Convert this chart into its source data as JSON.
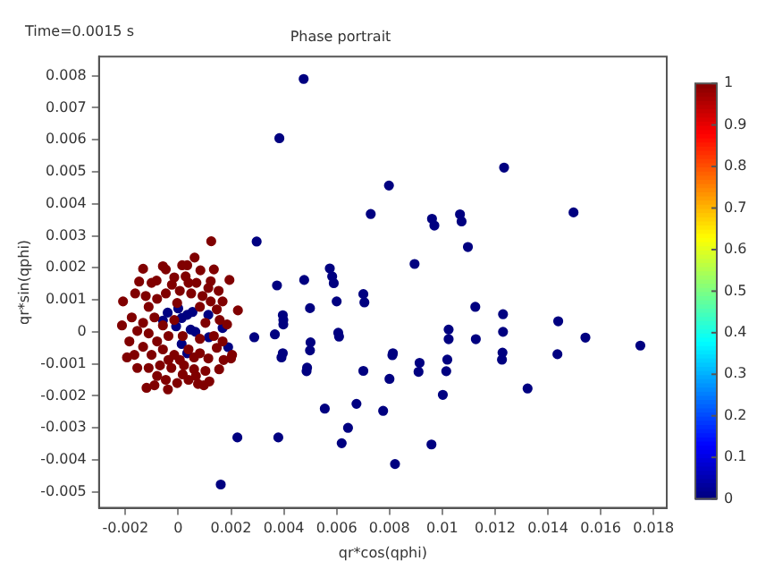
{
  "chart_data": {
    "type": "scatter",
    "title": "Phase portrait",
    "xlabel": "qr*cos(qphi)",
    "ylabel": "qr*sin(qphi)",
    "annotations": [
      "Time=0.0015 s"
    ],
    "xlim": [
      -0.003,
      0.0185
    ],
    "xticks": [
      -0.002,
      0,
      0.002,
      0.004,
      0.006,
      0.008,
      0.01,
      0.012,
      0.014,
      0.016,
      0.018
    ],
    "ylim": [
      -0.0055,
      0.0086
    ],
    "yticks": [
      -0.005,
      -0.004,
      -0.003,
      -0.002,
      -0.001,
      0,
      0.001,
      0.002,
      0.003,
      0.004,
      0.005,
      0.006,
      0.007,
      0.008
    ],
    "clim": [
      0,
      1
    ],
    "cticks": [
      0,
      0.1,
      0.2,
      0.3,
      0.4,
      0.5,
      0.6,
      0.7,
      0.8,
      0.9,
      1
    ],
    "marker": "circle",
    "grid": false,
    "legend": false,
    "series": [
      {
        "x": [
          0.00125,
          -0.00133,
          -0.00058,
          0.00015,
          0.00034,
          0.00062,
          -0.00163,
          -0.00209,
          -0.00148,
          -0.00101,
          -0.00082,
          -0.00024,
          -0.00015,
          0.00028,
          0.00084,
          0.00069,
          0.00123,
          0.00194,
          0.00153,
          0.00123,
          0.00226,
          0.00185,
          -0.00213,
          -0.00185,
          -0.00194,
          -0.0012,
          -0.0009,
          -0.00039,
          0.00017,
          0.00075,
          0.00097,
          0.00118,
          0.00155,
          0.00172,
          0.002,
          0.00146,
          0.00204,
          -0.00112,
          -0.0008,
          -0.00047,
          6e-05,
          0.00049,
          0.00092,
          0.00114,
          0.00082,
          0.00146,
          0.00168,
          -0.0009,
          -0.00133,
          -0.00112,
          -0.00155,
          -0.0008,
          -0.00037,
          0.00017,
          0.00082,
          0.00135,
          0.00157,
          0.00103,
          -0.00133,
          -0.00101,
          -0.00058,
          -0.00015,
          0.00039,
          0.00082,
          0.00114,
          -0.00155,
          -0.00112,
          -0.00069,
          -0.00026,
          0.00022,
          0.0006,
          0.00103,
          -0.0008,
          -0.00047,
          -4e-05,
          0.00039,
          0.00067,
          -0.00058,
          -0.00015,
          -0.00123,
          -0.00176,
          0.00039,
          -4e-05,
          0.00135,
          -0.00047,
          0.00168,
          -0.00166,
          0.0006,
          6e-05,
          -0.00037
        ],
        "values": [
          0.00283,
          0.00197,
          0.00205,
          0.00208,
          0.00208,
          0.00232,
          0.0012,
          0.00095,
          0.00157,
          0.00153,
          0.0016,
          0.00147,
          0.0017,
          0.00173,
          0.00192,
          0.00153,
          0.00158,
          0.00162,
          0.00128,
          0.00095,
          0.00067,
          0.00023,
          0.0002,
          -0.0003,
          -0.0008,
          -0.00175,
          -0.00167,
          -0.0018,
          -0.00133,
          -0.00163,
          -0.00167,
          -0.00155,
          -0.00117,
          -0.00088,
          -0.00083,
          -0.0005,
          -0.00072,
          0.00078,
          0.00103,
          0.0012,
          0.00128,
          0.0012,
          0.00112,
          0.00137,
          0.00078,
          0.0007,
          0.00095,
          0.00045,
          0.00028,
          -5e-05,
          3e-05,
          -0.0003,
          -0.00013,
          -0.00013,
          -0.00022,
          -0.00013,
          0.00037,
          0.00028,
          -0.00047,
          -0.00072,
          -0.00055,
          -0.00072,
          -0.00055,
          -0.00067,
          -0.00083,
          -0.00113,
          -0.00113,
          -0.00105,
          -0.00113,
          -0.00105,
          -0.00117,
          -0.00122,
          -0.00138,
          -0.0015,
          -0.0016,
          -0.0015,
          -0.00138,
          0.0002,
          0.00037,
          0.00112,
          0.00045,
          0.00153,
          0.0009,
          0.00195,
          0.00195,
          -0.0003,
          -0.00072,
          -0.0008,
          -0.00088,
          -0.00088
        ],
        "cvalues": [
          1,
          1,
          1,
          1,
          1,
          1,
          1,
          1,
          1,
          1,
          1,
          1,
          1,
          1,
          1,
          1,
          1,
          1,
          1,
          1,
          1,
          1,
          1,
          1,
          1,
          1,
          1,
          1,
          1,
          1,
          1,
          1,
          1,
          1,
          1,
          1,
          1,
          1,
          1,
          1,
          1,
          1,
          1,
          1,
          1,
          1,
          1,
          1,
          1,
          1,
          1,
          1,
          1,
          1,
          1,
          1,
          1,
          1,
          1,
          1,
          1,
          1,
          1,
          1,
          1,
          1,
          1,
          1,
          1,
          1,
          1,
          1,
          1,
          1,
          1,
          1,
          1,
          1,
          1,
          1,
          1,
          1,
          1,
          1,
          1,
          1,
          1,
          1,
          1,
          1
        ]
      },
      {
        "x": [
          0.00475,
          0.00383,
          0.01234,
          0.00798,
          0.00729,
          0.01497,
          0.00961,
          0.0097,
          0.01067,
          0.01073,
          0.01097,
          0.00895,
          0.00297,
          0.00374,
          0.00477,
          0.00574,
          0.00583,
          0.00589,
          0.00701,
          0.00705,
          0.006,
          0.01125,
          0.00499,
          0.0123,
          0.00396,
          0.00398,
          0.00398,
          0.01439,
          0.01024,
          0.0123,
          0.00606,
          0.00609,
          0.00501,
          0.00366,
          0.00288,
          0.01024,
          0.01127,
          0.01542,
          0.0175,
          0.00499,
          0.00396,
          0.00391,
          0.00813,
          0.00811,
          0.01228,
          0.01226,
          0.01436,
          0.01019,
          0.00914,
          0.00488,
          0.00486,
          0.00701,
          0.0091,
          0.01015,
          0.008,
          0.01323,
          0.01002,
          0.00675,
          0.00555,
          0.00776,
          0.00643,
          0.00224,
          0.00379,
          0.00619,
          0.00959,
          0.00821,
          0.00161,
          0.00189,
          0.00168,
          -0.0004,
          0,
          0.00013,
          0.00034,
          0.00054,
          0.00114,
          -0.00058,
          -8e-05,
          0.00047,
          0.00065,
          0.00013,
          0.00034,
          0.00116
        ],
        "values": [
          0.0079,
          0.00605,
          0.00513,
          0.00457,
          0.00368,
          0.00373,
          0.00353,
          0.00332,
          0.00367,
          0.00345,
          0.00265,
          0.00212,
          0.00282,
          0.00145,
          0.00162,
          0.00198,
          0.00173,
          0.00152,
          0.00118,
          0.00092,
          0.00095,
          0.00078,
          0.00074,
          0.00055,
          0.00052,
          0.00037,
          0.00023,
          0.00033,
          7e-05,
          0,
          -3e-05,
          -0.00015,
          -0.00033,
          -8e-05,
          -0.00017,
          -0.00023,
          -0.00023,
          -0.00018,
          -0.00043,
          -0.00058,
          -0.00067,
          -0.0008,
          -0.00067,
          -0.00073,
          -0.00065,
          -0.00087,
          -0.0007,
          -0.00087,
          -0.00097,
          -0.00112,
          -0.00123,
          -0.00122,
          -0.00125,
          -0.00123,
          -0.00147,
          -0.00177,
          -0.00197,
          -0.00225,
          -0.0024,
          -0.00247,
          -0.003,
          -0.0033,
          -0.0033,
          -0.00348,
          -0.00352,
          -0.00413,
          -0.00477,
          -0.00048,
          0.00012,
          0.0006,
          0.00073,
          0.00043,
          0.00053,
          0.00062,
          0.00053,
          0.00035,
          0.00017,
          7e-05,
          0,
          -0.00038,
          -0.00067,
          -0.00017
        ],
        "cvalues": [
          0,
          0,
          0,
          0,
          0,
          0,
          0,
          0,
          0,
          0,
          0,
          0,
          0,
          0,
          0,
          0,
          0,
          0,
          0,
          0,
          0,
          0,
          0,
          0,
          0,
          0,
          0,
          0,
          0,
          0,
          0,
          0,
          0,
          0,
          0,
          0,
          0,
          0,
          0,
          0,
          0,
          0,
          0,
          0,
          0,
          0,
          0,
          0,
          0,
          0,
          0,
          0,
          0,
          0,
          0,
          0,
          0,
          0,
          0,
          0,
          0,
          0,
          0,
          0,
          0,
          0,
          0,
          0,
          0,
          0,
          0,
          0,
          0,
          0,
          0,
          0,
          0,
          0,
          0,
          0,
          0,
          0
        ]
      }
    ]
  }
}
